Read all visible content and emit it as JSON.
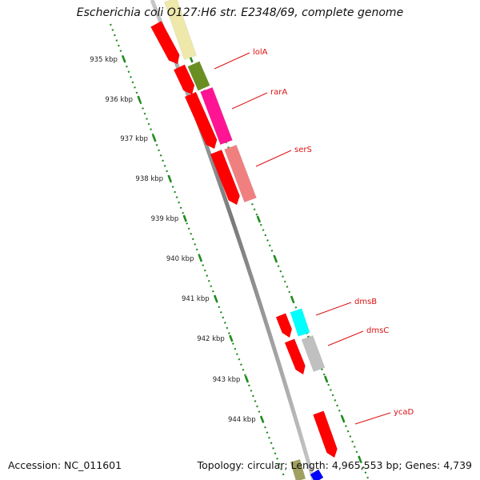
{
  "title": "Escherichia coli O127:H6 str. E2348/69, complete genome",
  "footer": {
    "accession": "Accession: NC_011601",
    "summary": "Topology: circular; Length: 4,965,553 bp; Genes: 4,739"
  },
  "ticks": [
    "935 kbp",
    "936 kbp",
    "937 kbp",
    "938 kbp",
    "939 kbp",
    "940 kbp",
    "941 kbp",
    "942 kbp",
    "943 kbp",
    "944 kbp"
  ],
  "genes": [
    {
      "name": "lolA",
      "color": "#6b8e23"
    },
    {
      "name": "rarA",
      "color": "#ff1493"
    },
    {
      "name": "serS",
      "color": "#f08080"
    },
    {
      "name": "dmsB",
      "color": "#00ffff"
    },
    {
      "name": "dmsC",
      "color": "#c0c0c0"
    },
    {
      "name": "ycaD",
      "color": "#ff0000"
    }
  ],
  "colors": {
    "backbone": "#808080",
    "cds_reverse": "#ff0000",
    "cds_pale": "#eee8aa",
    "tick": "#228b22",
    "label": "#dd1111",
    "blue_feature": "#0000ff"
  }
}
